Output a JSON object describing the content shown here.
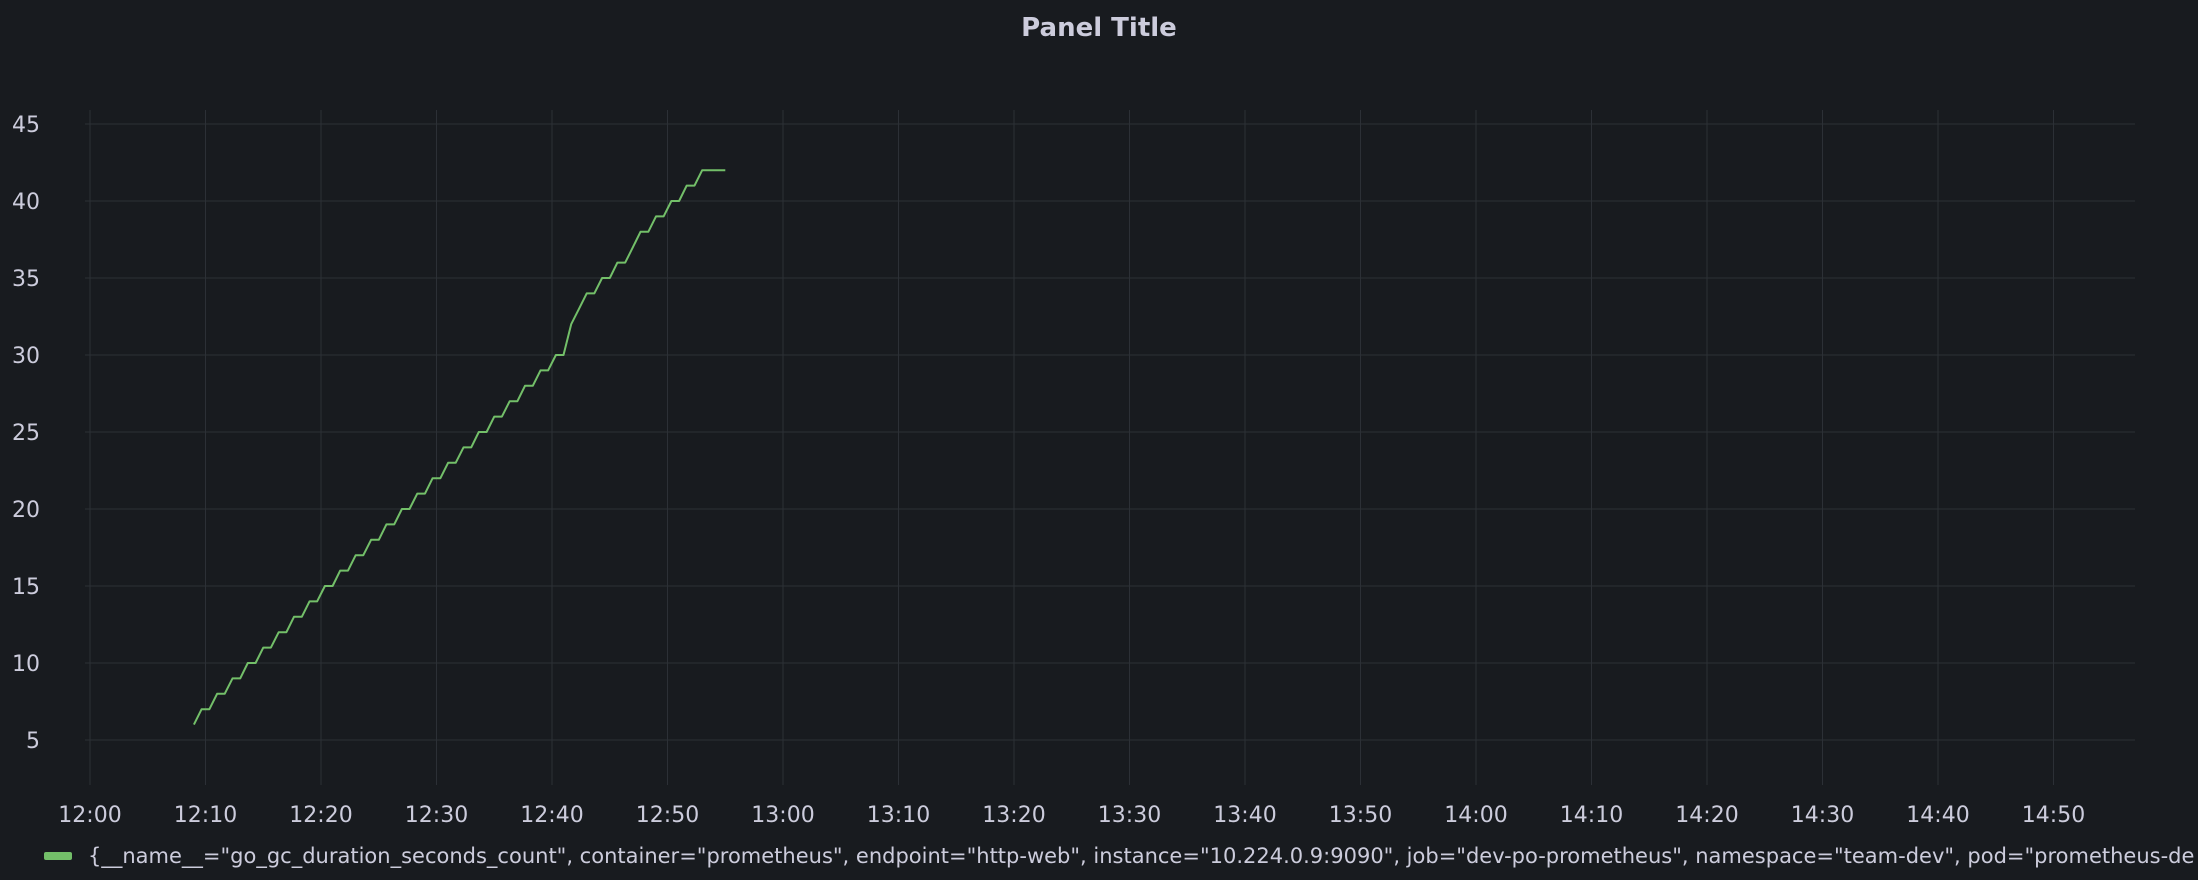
{
  "panel": {
    "title": "Panel Title"
  },
  "colors": {
    "background": "#181b1f",
    "grid": "#2c3036",
    "text": "#ccccdc",
    "series": "#73bf69"
  },
  "chart_data": {
    "type": "line",
    "title": "Panel Title",
    "xlabel": "",
    "ylabel": "",
    "x_unit": "time",
    "xlim": [
      "12:00",
      "14:55"
    ],
    "ylim": [
      2,
      46
    ],
    "x_ticks": [
      "12:00",
      "12:10",
      "12:20",
      "12:30",
      "12:40",
      "12:50",
      "13:00",
      "13:10",
      "13:20",
      "13:30",
      "13:40",
      "13:50",
      "14:00",
      "14:10",
      "14:20",
      "14:30",
      "14:40",
      "14:50"
    ],
    "y_ticks": [
      5,
      10,
      15,
      20,
      25,
      30,
      35,
      40,
      45
    ],
    "grid": true,
    "legend_position": "bottom",
    "series": [
      {
        "name": "{__name__=\"go_gc_duration_seconds_count\", container=\"prometheus\", endpoint=\"http-web\", instance=\"10.224.0.9:9090\", job=\"dev-po-prometheus\", namespace=\"team-dev\", pod=\"prometheus-de",
        "color": "#73bf69",
        "points": [
          [
            "12:09:00",
            6
          ],
          [
            "12:09:40",
            7
          ],
          [
            "12:10:20",
            7
          ],
          [
            "12:11:00",
            8
          ],
          [
            "12:11:40",
            8
          ],
          [
            "12:12:20",
            9
          ],
          [
            "12:13:00",
            9
          ],
          [
            "12:13:40",
            10
          ],
          [
            "12:14:20",
            10
          ],
          [
            "12:15:00",
            11
          ],
          [
            "12:15:40",
            11
          ],
          [
            "12:16:20",
            12
          ],
          [
            "12:17:00",
            12
          ],
          [
            "12:17:40",
            13
          ],
          [
            "12:18:20",
            13
          ],
          [
            "12:19:00",
            14
          ],
          [
            "12:19:40",
            14
          ],
          [
            "12:20:20",
            15
          ],
          [
            "12:21:00",
            15
          ],
          [
            "12:21:40",
            16
          ],
          [
            "12:22:20",
            16
          ],
          [
            "12:23:00",
            17
          ],
          [
            "12:23:40",
            17
          ],
          [
            "12:24:20",
            18
          ],
          [
            "12:25:00",
            18
          ],
          [
            "12:25:40",
            19
          ],
          [
            "12:26:20",
            19
          ],
          [
            "12:27:00",
            20
          ],
          [
            "12:27:40",
            20
          ],
          [
            "12:28:20",
            21
          ],
          [
            "12:29:00",
            21
          ],
          [
            "12:29:40",
            22
          ],
          [
            "12:30:20",
            22
          ],
          [
            "12:31:00",
            23
          ],
          [
            "12:31:40",
            23
          ],
          [
            "12:32:20",
            24
          ],
          [
            "12:33:00",
            24
          ],
          [
            "12:33:40",
            25
          ],
          [
            "12:34:20",
            25
          ],
          [
            "12:35:00",
            26
          ],
          [
            "12:35:40",
            26
          ],
          [
            "12:36:20",
            27
          ],
          [
            "12:37:00",
            27
          ],
          [
            "12:37:40",
            28
          ],
          [
            "12:38:20",
            28
          ],
          [
            "12:39:00",
            29
          ],
          [
            "12:39:40",
            29
          ],
          [
            "12:40:20",
            30
          ],
          [
            "12:41:00",
            30
          ],
          [
            "12:41:40",
            32
          ],
          [
            "12:42:20",
            33
          ],
          [
            "12:43:00",
            34
          ],
          [
            "12:43:40",
            34
          ],
          [
            "12:44:20",
            35
          ],
          [
            "12:45:00",
            35
          ],
          [
            "12:45:40",
            36
          ],
          [
            "12:46:20",
            36
          ],
          [
            "12:47:00",
            37
          ],
          [
            "12:47:40",
            38
          ],
          [
            "12:48:20",
            38
          ],
          [
            "12:49:00",
            39
          ],
          [
            "12:49:40",
            39
          ],
          [
            "12:50:20",
            40
          ],
          [
            "12:51:00",
            40
          ],
          [
            "12:51:40",
            41
          ],
          [
            "12:52:20",
            41
          ],
          [
            "12:53:00",
            42
          ],
          [
            "12:53:40",
            42
          ],
          [
            "12:54:20",
            42
          ],
          [
            "12:55:00",
            42
          ]
        ]
      }
    ]
  }
}
